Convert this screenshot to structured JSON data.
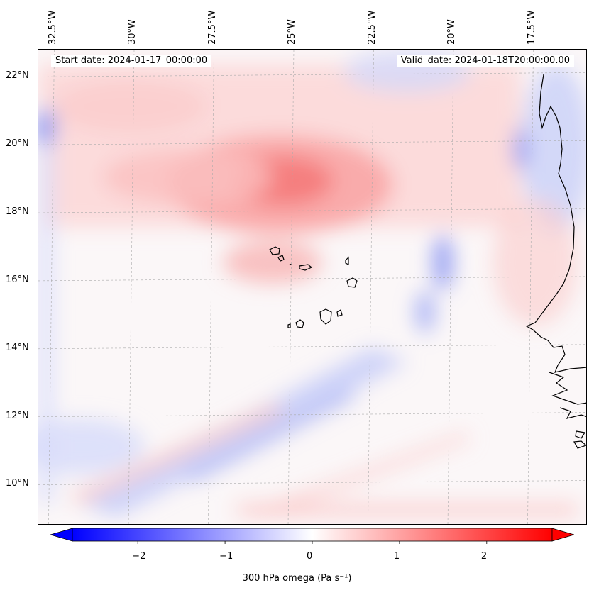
{
  "map": {
    "start_date_label": "Start date: 2024-01-17_00:00:00",
    "valid_date_label": "Valid_date: 2024-01-18T20:00:00.00",
    "coastline_color": "#000000",
    "gridline_color": "#aaaaaa",
    "extent": {
      "lon_min": -33.0,
      "lon_max": -15.8,
      "lat_min": 8.8,
      "lat_max": 22.8
    },
    "lon_ticks": [
      {
        "value": -32.5,
        "label": "32.5°W"
      },
      {
        "value": -30.0,
        "label": "30°W"
      },
      {
        "value": -27.5,
        "label": "27.5°W"
      },
      {
        "value": -25.0,
        "label": "25°W"
      },
      {
        "value": -22.5,
        "label": "22.5°W"
      },
      {
        "value": -20.0,
        "label": "20°W"
      },
      {
        "value": -17.5,
        "label": "17.5°W"
      }
    ],
    "lat_ticks": [
      {
        "value": 22,
        "label": "22°N"
      },
      {
        "value": 20,
        "label": "20°N"
      },
      {
        "value": 18,
        "label": "18°N"
      },
      {
        "value": 16,
        "label": "16°N"
      },
      {
        "value": 14,
        "label": "14°N"
      },
      {
        "value": 12,
        "label": "12°N"
      },
      {
        "value": 10,
        "label": "10°N"
      }
    ]
  },
  "colorbar": {
    "label": "300 hPa omega (Pa s⁻¹)",
    "min": -2.75,
    "max": 2.75,
    "ticks": [
      {
        "value": -2,
        "label": "−2"
      },
      {
        "value": -1,
        "label": "−1"
      },
      {
        "value": 0,
        "label": "0"
      },
      {
        "value": 1,
        "label": "1"
      },
      {
        "value": 2,
        "label": "2"
      }
    ],
    "colors": {
      "negative": "#0000ff",
      "zero": "#ffffff",
      "positive": "#ff0000"
    },
    "extend": "both"
  }
}
